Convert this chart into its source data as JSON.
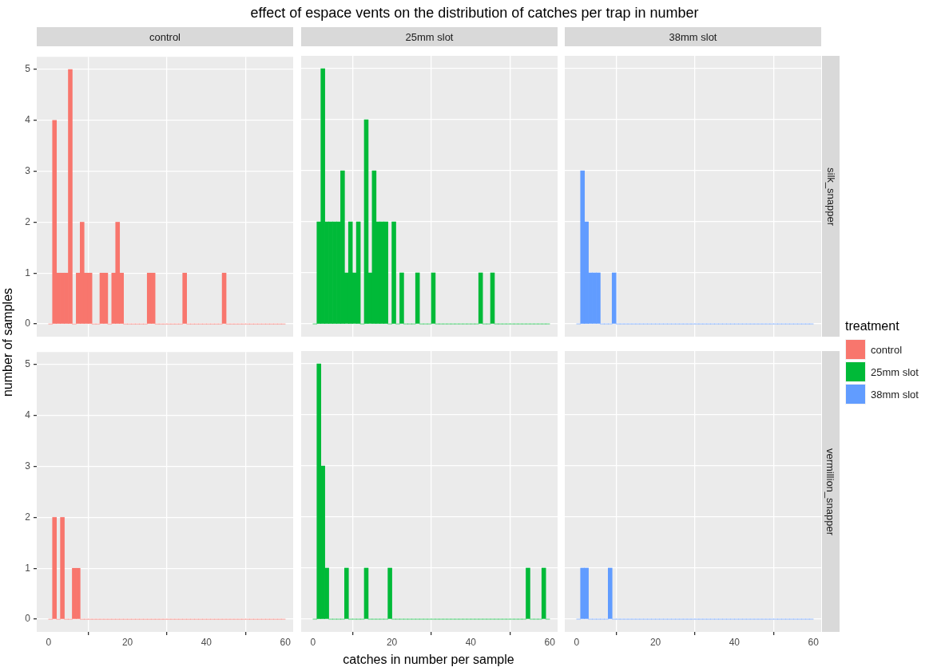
{
  "chart_data": [
    {
      "type": "other",
      "title": "effect of espace vents on the distribution of catches per trap in number",
      "xlabel": "catches in number per sample",
      "ylabel": "number of samples",
      "legend_title": "treatment",
      "categories": [
        "control",
        "25mm slot",
        "38mm slot"
      ],
      "colors": [
        "#f8766d",
        "#00ba38",
        "#619cff"
      ]
    },
    {
      "type": "histogram",
      "title": "control",
      "bins": [
        0,
        1,
        2,
        3,
        4,
        5,
        6,
        7,
        8,
        9,
        10,
        11,
        12,
        13,
        14,
        15,
        16,
        17,
        18,
        19,
        20,
        21,
        22,
        23,
        24,
        25,
        26,
        27,
        28,
        29,
        30,
        31,
        32,
        33,
        34,
        35,
        36,
        37,
        38,
        39,
        40,
        41,
        42,
        43,
        44,
        45,
        46,
        47,
        48,
        49,
        50,
        51,
        52,
        53,
        54,
        55,
        56,
        57,
        58,
        59,
        60
      ],
      "values": [
        0,
        4,
        1,
        1,
        1,
        5,
        0,
        1,
        2,
        1,
        1,
        0,
        0,
        1,
        1,
        0,
        1,
        2,
        1,
        0,
        0,
        0,
        0,
        0,
        0,
        1,
        1,
        0,
        0,
        0,
        0,
        0,
        0,
        0,
        1,
        0,
        0,
        0,
        0,
        0,
        0,
        0,
        0,
        0,
        1,
        0,
        0,
        0,
        0,
        0,
        0,
        0,
        0,
        0,
        0,
        0,
        0,
        0,
        0,
        0
      ],
      "color": "#f8766d",
      "xlim": [
        -3,
        62
      ],
      "xticks": [
        0,
        20,
        40,
        60
      ],
      "ylim": [
        -0.25,
        5.25
      ],
      "yticks": [
        0,
        1,
        2,
        3,
        4,
        5
      ],
      "grid": true,
      "tick_labels": "y"
    },
    {
      "type": "histogram",
      "title": "25mm slot",
      "bins": [
        0,
        1,
        2,
        3,
        4,
        5,
        6,
        7,
        8,
        9,
        10,
        11,
        12,
        13,
        14,
        15,
        16,
        17,
        18,
        19,
        20,
        21,
        22,
        23,
        24,
        25,
        26,
        27,
        28,
        29,
        30,
        31,
        32,
        33,
        34,
        35,
        36,
        37,
        38,
        39,
        40,
        41,
        42,
        43,
        44,
        45,
        46,
        47,
        48,
        49,
        50,
        51,
        52,
        53,
        54,
        55,
        56,
        57,
        58,
        59,
        60
      ],
      "values": [
        0,
        2,
        5,
        2,
        2,
        2,
        2,
        3,
        1,
        2,
        1,
        2,
        0,
        4,
        1,
        3,
        2,
        2,
        2,
        0,
        2,
        0,
        1,
        0,
        0,
        0,
        1,
        0,
        0,
        0,
        1,
        0,
        0,
        0,
        0,
        0,
        0,
        0,
        0,
        0,
        0,
        0,
        1,
        0,
        0,
        1,
        0,
        0,
        0,
        0,
        0,
        0,
        0,
        0,
        0,
        0,
        0,
        0,
        0,
        0
      ],
      "color": "#00ba38",
      "xlim": [
        -3,
        62
      ],
      "xticks": [
        0,
        20,
        40,
        60
      ],
      "ylim": [
        -0.25,
        5.25
      ],
      "yticks": [
        0,
        1,
        2,
        3,
        4,
        5
      ],
      "grid": true,
      "tick_labels": false
    },
    {
      "type": "histogram",
      "title": "38mm slot",
      "y2label": "silk_snapper",
      "bins": [
        0,
        1,
        2,
        3,
        4,
        5,
        6,
        7,
        8,
        9,
        10,
        11,
        12,
        13,
        14,
        15,
        16,
        17,
        18,
        19,
        20,
        21,
        22,
        23,
        24,
        25,
        26,
        27,
        28,
        29,
        30,
        31,
        32,
        33,
        34,
        35,
        36,
        37,
        38,
        39,
        40,
        41,
        42,
        43,
        44,
        45,
        46,
        47,
        48,
        49,
        50,
        51,
        52,
        53,
        54,
        55,
        56,
        57,
        58,
        59,
        60
      ],
      "values": [
        0,
        3,
        2,
        1,
        1,
        1,
        0,
        0,
        0,
        1,
        0,
        0,
        0,
        0,
        0,
        0,
        0,
        0,
        0,
        0,
        0,
        0,
        0,
        0,
        0,
        0,
        0,
        0,
        0,
        0,
        0,
        0,
        0,
        0,
        0,
        0,
        0,
        0,
        0,
        0,
        0,
        0,
        0,
        0,
        0,
        0,
        0,
        0,
        0,
        0,
        0,
        0,
        0,
        0,
        0,
        0,
        0,
        0,
        0,
        0
      ],
      "color": "#619cff",
      "xlim": [
        -3,
        62
      ],
      "xticks": [
        0,
        20,
        40,
        60
      ],
      "ylim": [
        -0.25,
        5.25
      ],
      "yticks": [
        0,
        1,
        2,
        3,
        4,
        5
      ],
      "grid": true,
      "tick_labels": false
    },
    {
      "type": "histogram",
      "bins": [
        0,
        1,
        2,
        3,
        4,
        5,
        6,
        7,
        8,
        9,
        10,
        11,
        12,
        13,
        14,
        15,
        16,
        17,
        18,
        19,
        20,
        21,
        22,
        23,
        24,
        25,
        26,
        27,
        28,
        29,
        30,
        31,
        32,
        33,
        34,
        35,
        36,
        37,
        38,
        39,
        40,
        41,
        42,
        43,
        44,
        45,
        46,
        47,
        48,
        49,
        50,
        51,
        52,
        53,
        54,
        55,
        56,
        57,
        58,
        59,
        60
      ],
      "values": [
        0,
        2,
        0,
        2,
        0,
        0,
        1,
        1,
        0,
        0,
        0,
        0,
        0,
        0,
        0,
        0,
        0,
        0,
        0,
        0,
        0,
        0,
        0,
        0,
        0,
        0,
        0,
        0,
        0,
        0,
        0,
        0,
        0,
        0,
        0,
        0,
        0,
        0,
        0,
        0,
        0,
        0,
        0,
        0,
        0,
        0,
        0,
        0,
        0,
        0,
        0,
        0,
        0,
        0,
        0,
        0,
        0,
        0,
        0,
        0
      ],
      "color": "#f8766d",
      "xlim": [
        -3,
        62
      ],
      "xticks": [
        0,
        20,
        40,
        60
      ],
      "ylim": [
        -0.25,
        5.25
      ],
      "yticks": [
        0,
        1,
        2,
        3,
        4,
        5
      ],
      "grid": true
    },
    {
      "type": "histogram",
      "bins": [
        0,
        1,
        2,
        3,
        4,
        5,
        6,
        7,
        8,
        9,
        10,
        11,
        12,
        13,
        14,
        15,
        16,
        17,
        18,
        19,
        20,
        21,
        22,
        23,
        24,
        25,
        26,
        27,
        28,
        29,
        30,
        31,
        32,
        33,
        34,
        35,
        36,
        37,
        38,
        39,
        40,
        41,
        42,
        43,
        44,
        45,
        46,
        47,
        48,
        49,
        50,
        51,
        52,
        53,
        54,
        55,
        56,
        57,
        58,
        59,
        60
      ],
      "values": [
        0,
        5,
        3,
        1,
        0,
        0,
        0,
        0,
        1,
        0,
        0,
        0,
        0,
        1,
        0,
        0,
        0,
        0,
        0,
        1,
        0,
        0,
        0,
        0,
        0,
        0,
        0,
        0,
        0,
        0,
        0,
        0,
        0,
        0,
        0,
        0,
        0,
        0,
        0,
        0,
        0,
        0,
        0,
        0,
        0,
        0,
        0,
        0,
        0,
        0,
        0,
        0,
        0,
        0,
        1,
        0,
        0,
        0,
        1,
        0
      ],
      "color": "#00ba38",
      "xlim": [
        -3,
        62
      ],
      "xticks": [
        0,
        20,
        40,
        60
      ],
      "ylim": [
        -0.25,
        5.25
      ],
      "yticks": [
        0,
        1,
        2,
        3,
        4,
        5
      ],
      "grid": true,
      "tick_labels": "x"
    },
    {
      "type": "histogram",
      "y2label": "vermillion_snapper",
      "bins": [
        0,
        1,
        2,
        3,
        4,
        5,
        6,
        7,
        8,
        9,
        10,
        11,
        12,
        13,
        14,
        15,
        16,
        17,
        18,
        19,
        20,
        21,
        22,
        23,
        24,
        25,
        26,
        27,
        28,
        29,
        30,
        31,
        32,
        33,
        34,
        35,
        36,
        37,
        38,
        39,
        40,
        41,
        42,
        43,
        44,
        45,
        46,
        47,
        48,
        49,
        50,
        51,
        52,
        53,
        54,
        55,
        56,
        57,
        58,
        59,
        60
      ],
      "values": [
        0,
        1,
        1,
        0,
        0,
        0,
        0,
        0,
        1,
        0,
        0,
        0,
        0,
        0,
        0,
        0,
        0,
        0,
        0,
        0,
        0,
        0,
        0,
        0,
        0,
        0,
        0,
        0,
        0,
        0,
        0,
        0,
        0,
        0,
        0,
        0,
        0,
        0,
        0,
        0,
        0,
        0,
        0,
        0,
        0,
        0,
        0,
        0,
        0,
        0,
        0,
        0,
        0,
        0,
        0,
        0,
        0,
        0,
        0,
        0
      ],
      "color": "#619cff",
      "xlim": [
        -3,
        62
      ],
      "xticks": [
        0,
        20,
        40,
        60
      ],
      "ylim": [
        -0.25,
        5.25
      ],
      "yticks": [
        0,
        1,
        2,
        3,
        4,
        5
      ],
      "grid": true,
      "tick_labels": "x"
    }
  ]
}
